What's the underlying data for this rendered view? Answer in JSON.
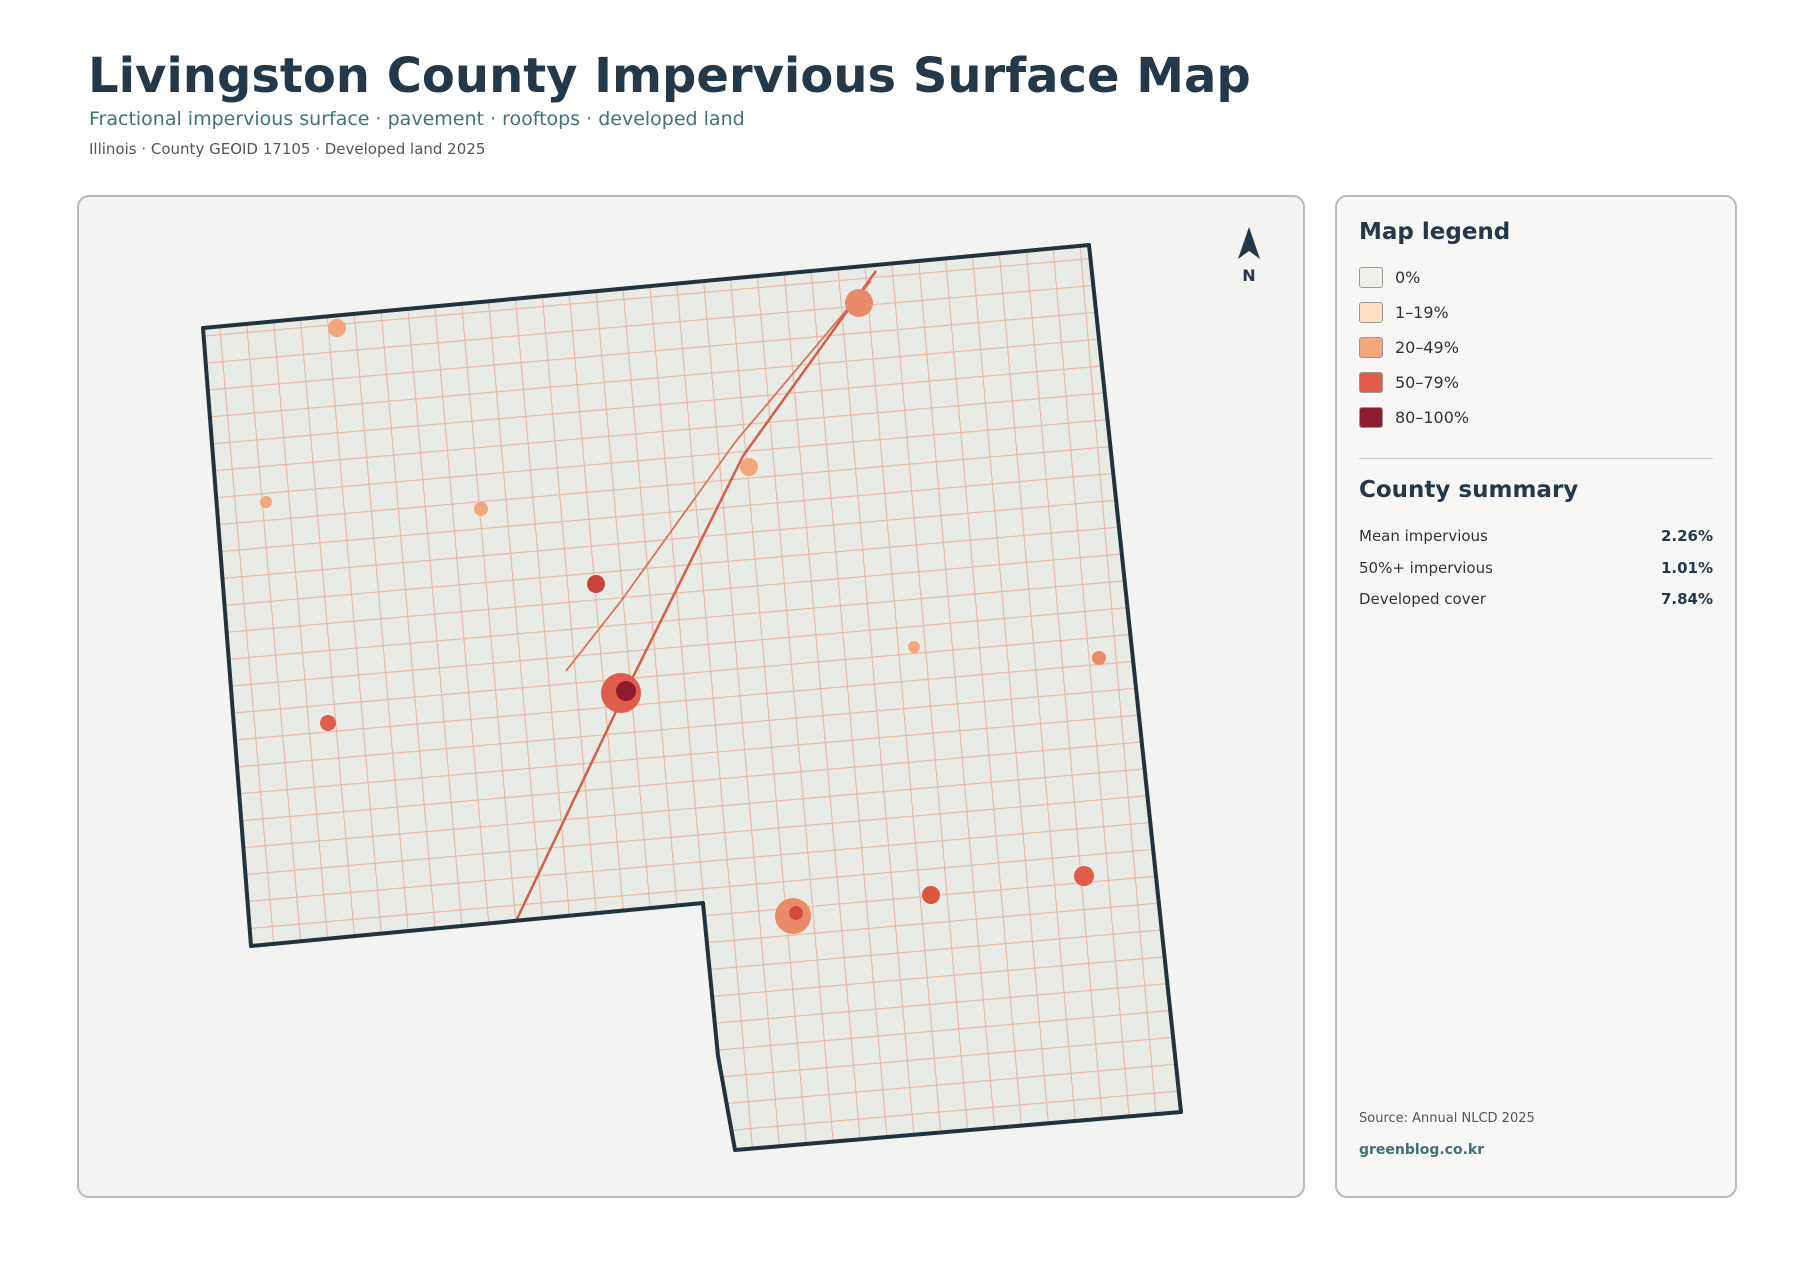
{
  "header": {
    "title": "Livingston County Impervious Surface Map",
    "subtitle": "Fractional impervious surface · pavement · rooftops · developed land",
    "meta": "Illinois · County GEOID 17105 · Developed land 2025"
  },
  "map": {
    "north_label": "N"
  },
  "legend": {
    "title": "Map legend",
    "items": [
      {
        "label": "0%",
        "color": "#efefec"
      },
      {
        "label": "1–19%",
        "color": "#fde0c0"
      },
      {
        "label": "20–49%",
        "color": "#f4a67c"
      },
      {
        "label": "50–79%",
        "color": "#e05c4b"
      },
      {
        "label": "80–100%",
        "color": "#8e1b2e"
      }
    ]
  },
  "summary": {
    "title": "County summary",
    "rows": [
      [
        "Mean impervious",
        "2.26%"
      ],
      [
        "50%+ impervious",
        "1.01%"
      ],
      [
        "Developed cover",
        "7.84%"
      ]
    ]
  },
  "footer": {
    "source": "Source: Annual NLCD 2025",
    "site": "greenblog.co.kr"
  }
}
